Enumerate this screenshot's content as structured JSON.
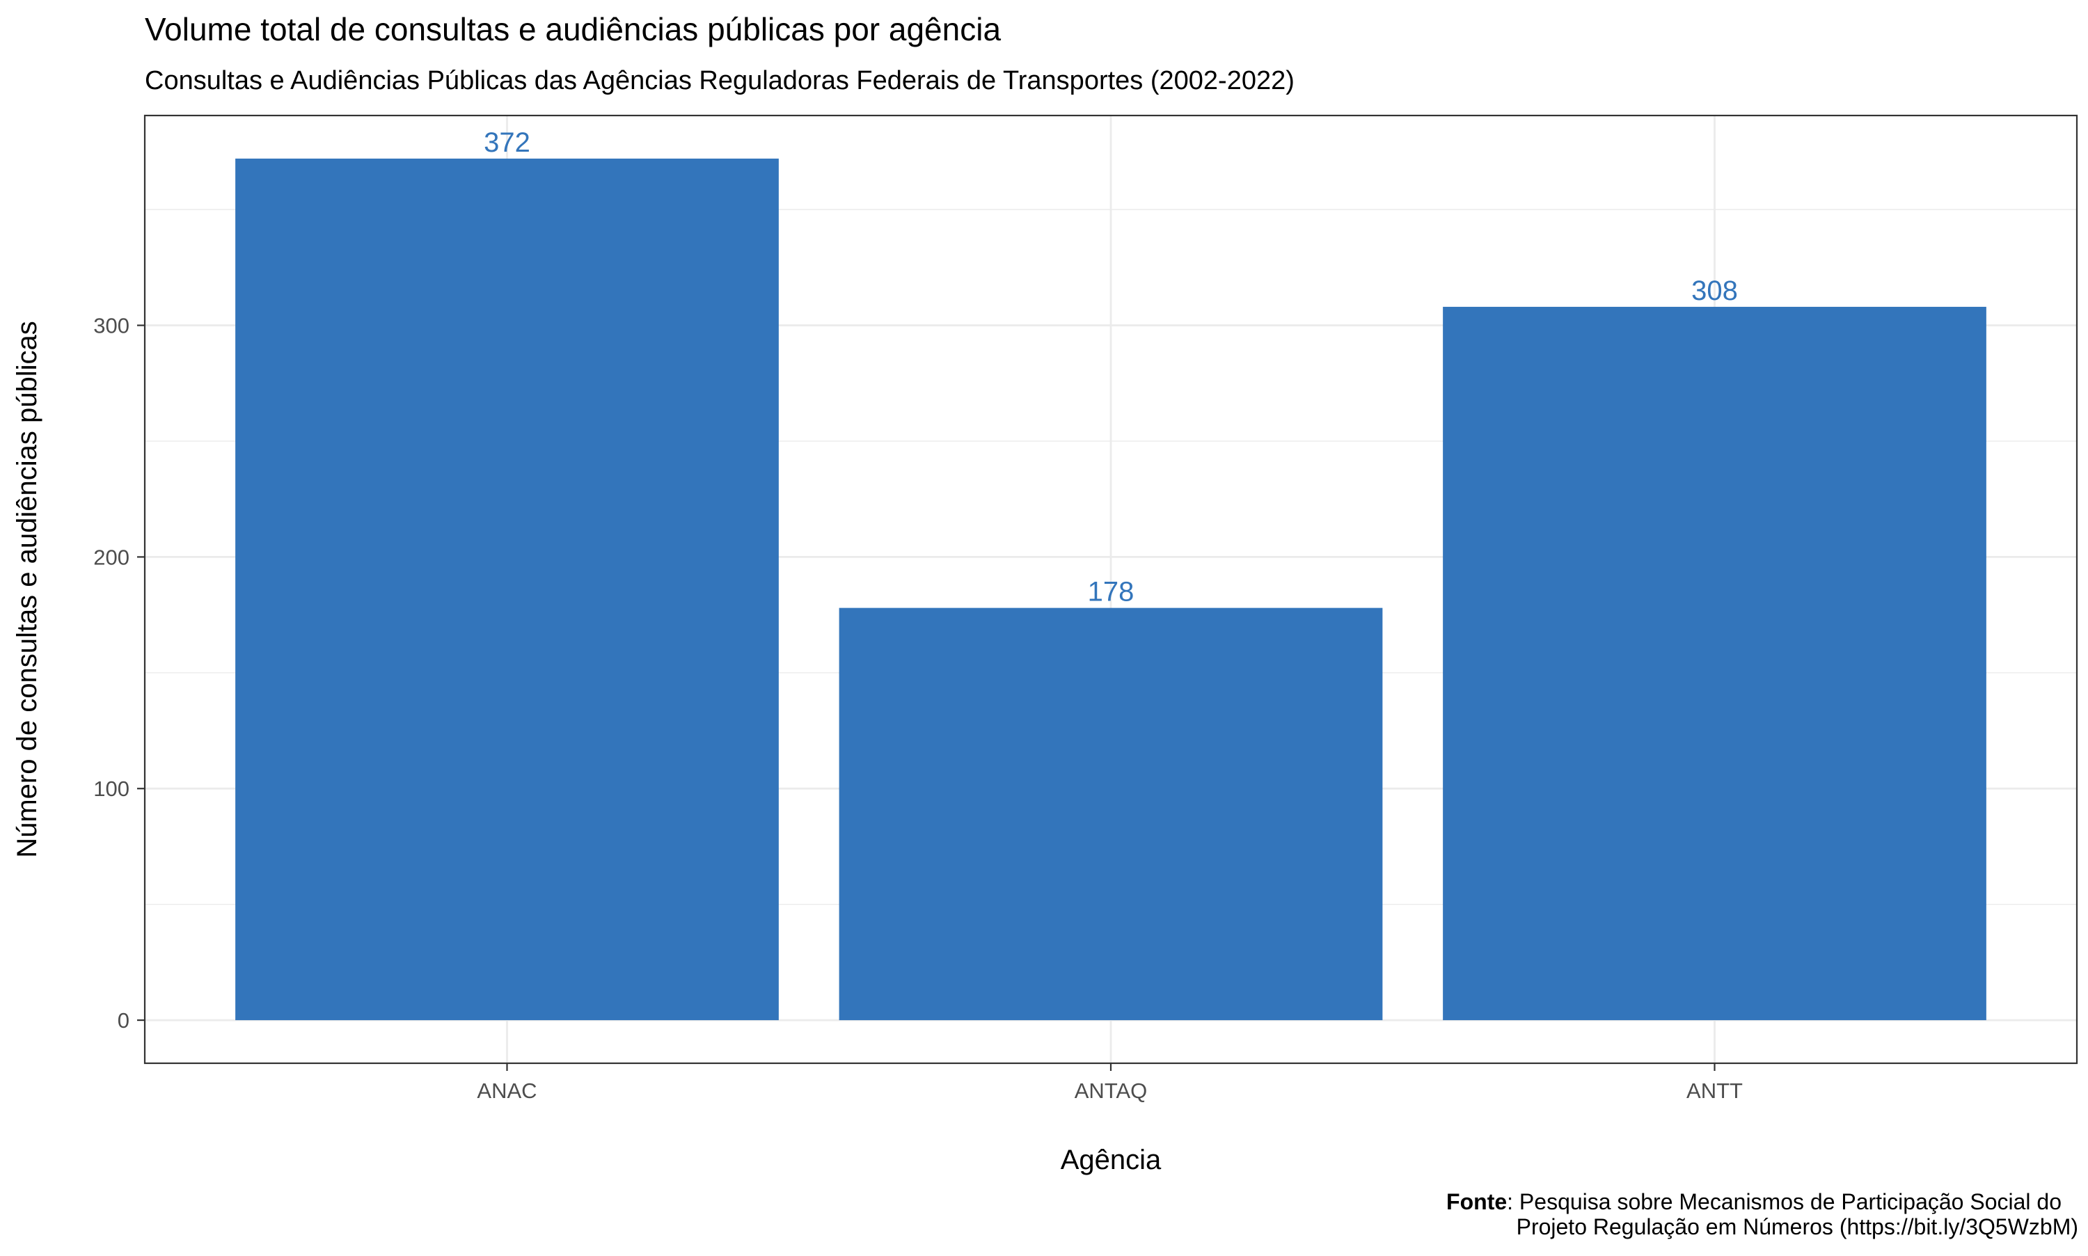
{
  "chart_data": {
    "type": "bar",
    "title": "Volume total de consultas e audiências públicas por agência",
    "subtitle": "Consultas e Audiências Públicas das Agências Reguladoras Federais de Transportes (2002-2022)",
    "xlabel": "Agência",
    "ylabel": "Número de consultas e audiências públicas",
    "categories": [
      "ANAC",
      "ANTAQ",
      "ANTT"
    ],
    "values": [
      372,
      178,
      308
    ],
    "value_labels": [
      "372",
      "178",
      "308"
    ],
    "ylim": [
      -18.6,
      390.6
    ],
    "y_ticks": [
      0,
      100,
      200,
      300
    ],
    "y_tick_labels": [
      "0",
      "100",
      "200",
      "300"
    ],
    "grid": true,
    "bar_color": "#3375BB",
    "label_color": "#3375BB",
    "caption": {
      "bold": "Fonte",
      "line1": ": Pesquisa sobre Mecanismos de Participação Social do",
      "line2": "Projeto Regulação em Números (https://bit.ly/3Q5WzbM)"
    }
  }
}
